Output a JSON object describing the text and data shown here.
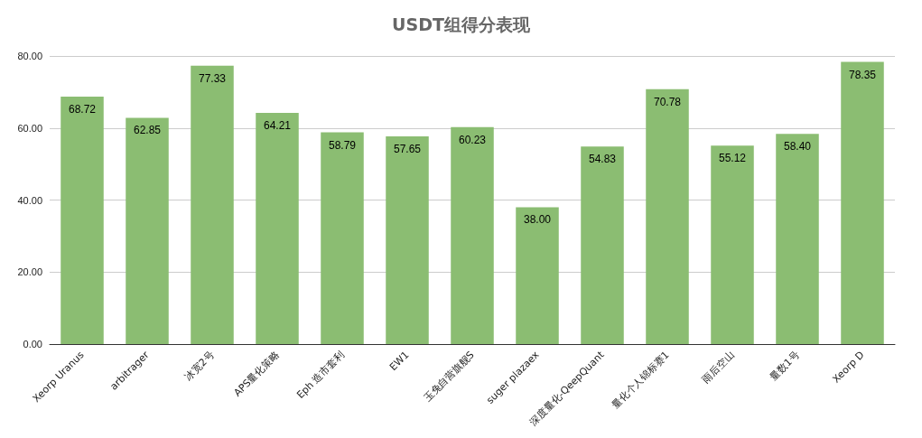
{
  "chart_data": {
    "type": "bar",
    "title": "USDT组得分表现",
    "categories": [
      "Xeorp Uranus",
      "arbitrager",
      "冰宽2号",
      "APS量化策略",
      "Eph 造市套利",
      "EW1",
      "玉兔自营旗舰S",
      "suger plazaex",
      "深度量化-QeepQuant",
      "量化个人锦标赛1",
      "雨后空山",
      "量数1号",
      "Xeorp D"
    ],
    "values": [
      68.72,
      62.85,
      77.33,
      64.21,
      58.79,
      57.65,
      60.23,
      38.0,
      54.83,
      70.78,
      55.12,
      58.4,
      78.35
    ],
    "value_labels": [
      "68.72",
      "62.85",
      "77.33",
      "64.21",
      "58.79",
      "57.65",
      "60.23",
      "38.00",
      "54.83",
      "70.78",
      "55.12",
      "58.40",
      "78.35"
    ],
    "color": "#8bbd72",
    "ylim": [
      0,
      80
    ],
    "yticks": [
      {
        "value": 0,
        "label": "0.00"
      },
      {
        "value": 20,
        "label": "20.00"
      },
      {
        "value": 40,
        "label": "40.00"
      },
      {
        "value": 60,
        "label": "60.00"
      },
      {
        "value": 80,
        "label": "80.00"
      }
    ],
    "grid": "y"
  }
}
